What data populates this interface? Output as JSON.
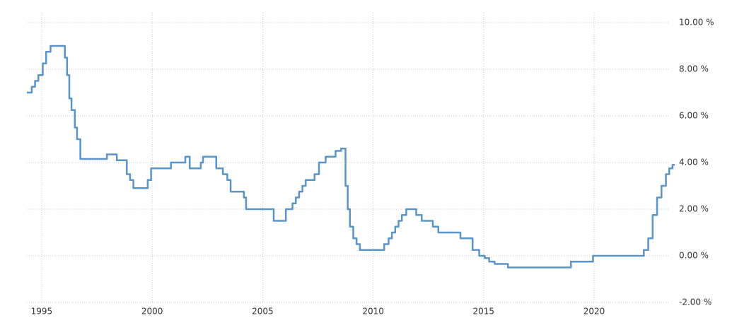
{
  "chart_data": {
    "type": "line",
    "x": [
      1994.33,
      1994.55,
      1994.55,
      1994.7,
      1994.7,
      1994.85,
      1994.85,
      1995.05,
      1995.05,
      1995.2,
      1995.2,
      1995.4,
      1995.4,
      1996.05,
      1996.05,
      1996.15,
      1996.15,
      1996.25,
      1996.25,
      1996.35,
      1996.35,
      1996.5,
      1996.5,
      1996.6,
      1996.6,
      1996.75,
      1996.75,
      1997.95,
      1997.95,
      1998.4,
      1998.4,
      1998.85,
      1998.85,
      1999.0,
      1999.0,
      1999.15,
      1999.15,
      1999.8,
      1999.8,
      1999.95,
      1999.95,
      2000.85,
      2000.85,
      2001.5,
      2001.5,
      2001.7,
      2001.7,
      2002.2,
      2002.2,
      2002.3,
      2002.3,
      2002.9,
      2002.9,
      2003.2,
      2003.2,
      2003.4,
      2003.4,
      2003.55,
      2003.55,
      2004.15,
      2004.15,
      2004.25,
      2004.25,
      2005.5,
      2005.5,
      2006.05,
      2006.05,
      2006.35,
      2006.35,
      2006.5,
      2006.5,
      2006.65,
      2006.65,
      2006.8,
      2006.8,
      2006.95,
      2006.95,
      2007.35,
      2007.35,
      2007.55,
      2007.55,
      2007.85,
      2007.85,
      2008.3,
      2008.3,
      2008.55,
      2008.55,
      2008.75,
      2008.75,
      2008.85,
      2008.85,
      2008.95,
      2008.95,
      2009.1,
      2009.1,
      2009.25,
      2009.25,
      2009.4,
      2009.4,
      2010.5,
      2010.5,
      2010.7,
      2010.7,
      2010.85,
      2010.85,
      2011.0,
      2011.0,
      2011.15,
      2011.15,
      2011.3,
      2011.3,
      2011.5,
      2011.5,
      2011.95,
      2011.95,
      2012.2,
      2012.2,
      2012.7,
      2012.7,
      2012.95,
      2012.95,
      2013.95,
      2013.95,
      2014.5,
      2014.5,
      2014.8,
      2014.8,
      2015.05,
      2015.05,
      2015.25,
      2015.25,
      2015.5,
      2015.5,
      2016.1,
      2016.1,
      2018.95,
      2018.95,
      2019.95,
      2019.95,
      2022.25,
      2022.25,
      2022.45,
      2022.45,
      2022.65,
      2022.65,
      2022.85,
      2022.85,
      2023.05,
      2023.05,
      2023.25,
      2023.25,
      2023.4,
      2023.4,
      2023.55,
      2023.55,
      2023.65
    ],
    "values": [
      7.0,
      7.0,
      7.25,
      7.25,
      7.5,
      7.5,
      7.75,
      7.75,
      8.25,
      8.25,
      8.75,
      8.75,
      9.0,
      9.0,
      8.5,
      8.5,
      7.75,
      7.75,
      6.75,
      6.75,
      6.25,
      6.25,
      5.5,
      5.5,
      5.0,
      5.0,
      4.15,
      4.15,
      4.35,
      4.35,
      4.1,
      4.1,
      3.5,
      3.5,
      3.25,
      3.25,
      2.9,
      2.9,
      3.25,
      3.25,
      3.75,
      3.75,
      4.0,
      4.0,
      4.25,
      4.25,
      3.75,
      3.75,
      4.0,
      4.0,
      4.25,
      4.25,
      3.75,
      3.75,
      3.5,
      3.5,
      3.25,
      3.25,
      2.75,
      2.75,
      2.5,
      2.5,
      2.0,
      2.0,
      1.5,
      1.5,
      2.0,
      2.0,
      2.25,
      2.25,
      2.5,
      2.5,
      2.75,
      2.75,
      3.0,
      3.0,
      3.25,
      3.25,
      3.5,
      3.5,
      4.0,
      4.0,
      4.25,
      4.25,
      4.5,
      4.5,
      4.6,
      4.6,
      3.0,
      3.0,
      2.0,
      2.0,
      1.25,
      1.25,
      0.75,
      0.75,
      0.5,
      0.5,
      0.25,
      0.25,
      0.5,
      0.5,
      0.75,
      0.75,
      1.0,
      1.0,
      1.25,
      1.25,
      1.5,
      1.5,
      1.75,
      1.75,
      2.0,
      2.0,
      1.75,
      1.75,
      1.5,
      1.5,
      1.25,
      1.25,
      1.0,
      1.0,
      0.75,
      0.75,
      0.25,
      0.25,
      0.0,
      0.0,
      -0.1,
      -0.1,
      -0.25,
      -0.25,
      -0.35,
      -0.35,
      -0.5,
      -0.5,
      -0.25,
      -0.25,
      0.0,
      0.0,
      0.25,
      0.25,
      0.75,
      0.75,
      1.75,
      1.75,
      2.5,
      2.5,
      3.0,
      3.0,
      3.5,
      3.5,
      3.75,
      3.75,
      3.9,
      3.9
    ],
    "color": "#5b94c6",
    "xlim": [
      1994.33,
      2023.68
    ],
    "xticks": [
      1995,
      2000,
      2005,
      2010,
      2015,
      2020
    ],
    "ylim": [
      -2,
      10
    ],
    "yticks": [
      {
        "value": -2,
        "label": "-2.00 %"
      },
      {
        "value": 0,
        "label": "0.00 %"
      },
      {
        "value": 2,
        "label": "2.00 %"
      },
      {
        "value": 4,
        "label": "4.00 %"
      },
      {
        "value": 6,
        "label": "6.00 %"
      },
      {
        "value": 8,
        "label": "8.00 %"
      },
      {
        "value": 10,
        "label": "10.00 %"
      }
    ],
    "grid": true
  }
}
